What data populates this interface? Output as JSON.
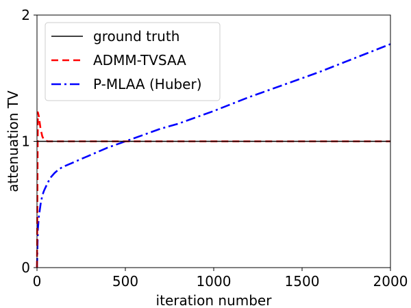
{
  "chart_data": {
    "type": "line",
    "title": "",
    "xlabel": "iteration number",
    "ylabel": "attenuation TV",
    "xlim": [
      0,
      2000
    ],
    "ylim": [
      0,
      2
    ],
    "xticks": [
      0,
      500,
      1000,
      1500,
      2000
    ],
    "yticks": [
      0,
      1,
      2
    ],
    "grid": false,
    "legend_position": "top-left",
    "series": [
      {
        "name": "ground truth",
        "color": "#000000",
        "style": "solid",
        "x": [
          0,
          2000
        ],
        "y": [
          1.0,
          1.0
        ]
      },
      {
        "name": "ADMM-TVSAA",
        "color": "#ff0000",
        "style": "dashed",
        "x": [
          0,
          5,
          10,
          20,
          30,
          40,
          60,
          100,
          200,
          500,
          1000,
          1500,
          2000
        ],
        "y": [
          0.0,
          1.23,
          1.2,
          1.1,
          1.04,
          1.01,
          1.0,
          1.0,
          1.0,
          1.0,
          1.0,
          1.0,
          1.0
        ]
      },
      {
        "name": "P-MLAA (Huber)",
        "color": "#0000ff",
        "style": "dashdot",
        "x": [
          0,
          5,
          10,
          20,
          30,
          40,
          50,
          60,
          75,
          100,
          125,
          150,
          200,
          250,
          300,
          400,
          500,
          600,
          700,
          800,
          900,
          1000,
          1200,
          1400,
          1600,
          1800,
          2000
        ],
        "y": [
          0.0,
          0.3,
          0.4,
          0.5,
          0.57,
          0.61,
          0.64,
          0.67,
          0.71,
          0.75,
          0.78,
          0.8,
          0.83,
          0.86,
          0.89,
          0.95,
          1.0,
          1.05,
          1.1,
          1.14,
          1.19,
          1.24,
          1.35,
          1.45,
          1.55,
          1.66,
          1.77
        ]
      }
    ]
  }
}
